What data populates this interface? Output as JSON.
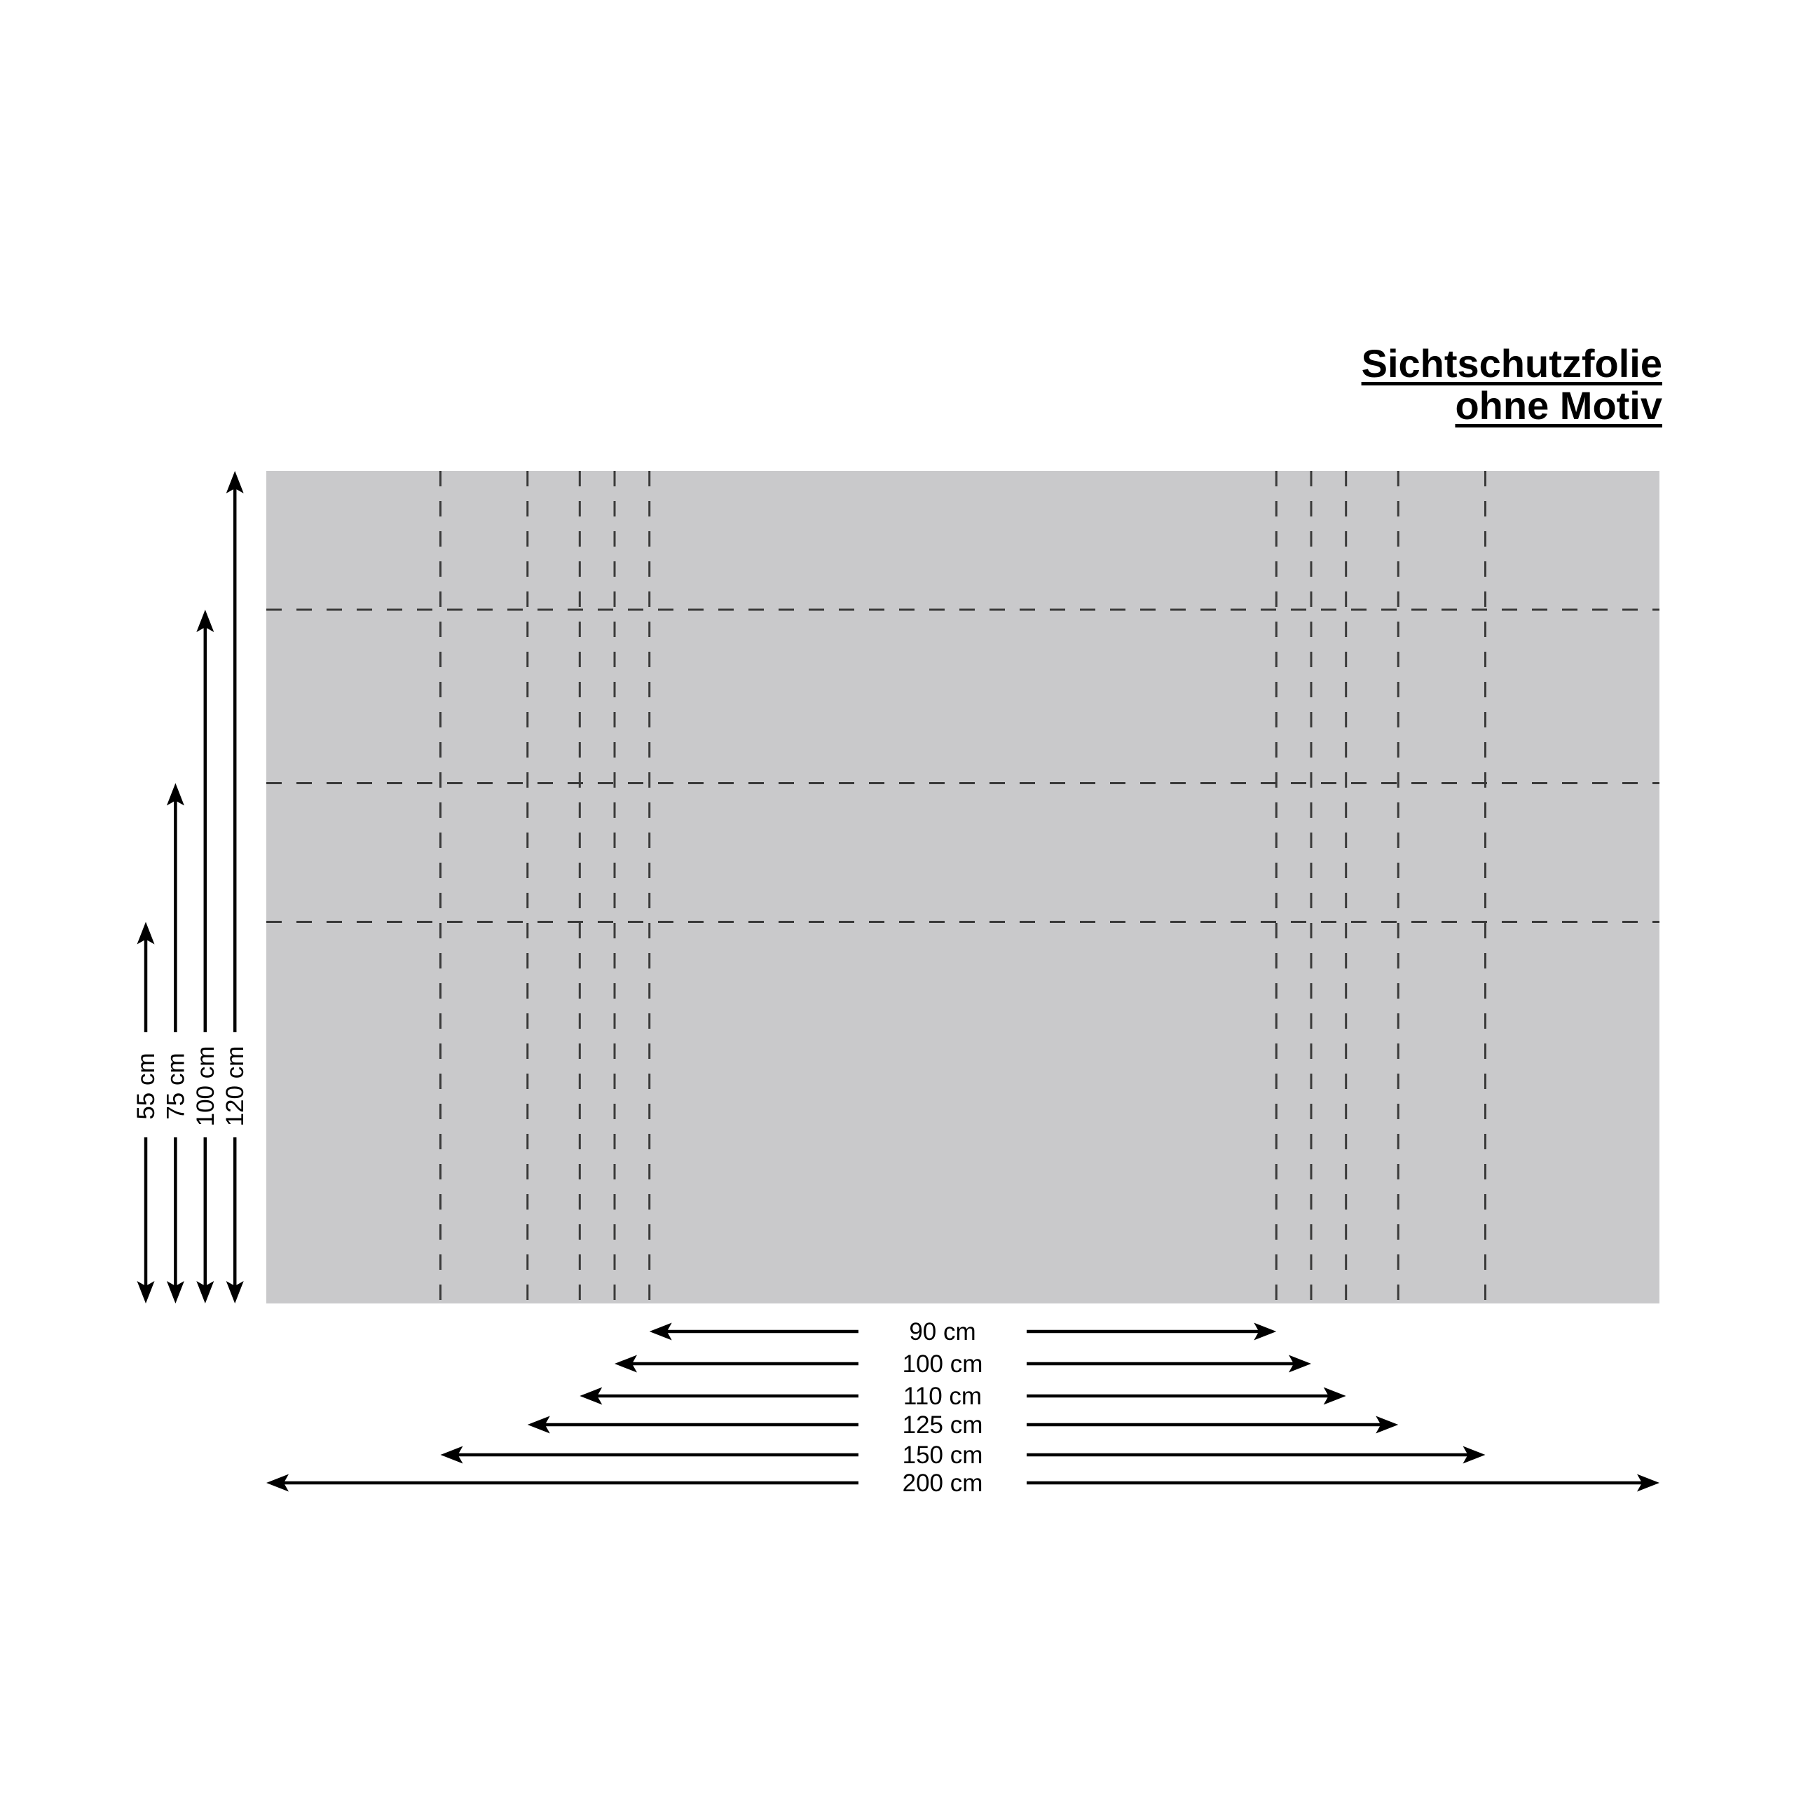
{
  "title": {
    "line1": "Sichtschutzfolie",
    "line2": "ohne Motiv"
  },
  "sheet": {
    "width_cm": 200,
    "height_cm": 120,
    "cut_widths_cm": [
      90,
      100,
      110,
      125,
      150
    ],
    "cut_heights_cm": [
      55,
      75,
      100
    ]
  },
  "height_labels": [
    {
      "cm": 55,
      "label": "55 cm"
    },
    {
      "cm": 75,
      "label": "75 cm"
    },
    {
      "cm": 100,
      "label": "100 cm"
    },
    {
      "cm": 120,
      "label": "120 cm"
    }
  ],
  "width_labels": [
    {
      "cm": 90,
      "label": "90 cm"
    },
    {
      "cm": 100,
      "label": "100 cm"
    },
    {
      "cm": 110,
      "label": "110 cm"
    },
    {
      "cm": 125,
      "label": "125 cm"
    },
    {
      "cm": 150,
      "label": "150 cm"
    },
    {
      "cm": 200,
      "label": "200 cm"
    }
  ],
  "colors": {
    "sheet": "#c9c9cb",
    "cut_line": "#3a3a3a",
    "ink": "#000000",
    "background": "#ffffff"
  }
}
